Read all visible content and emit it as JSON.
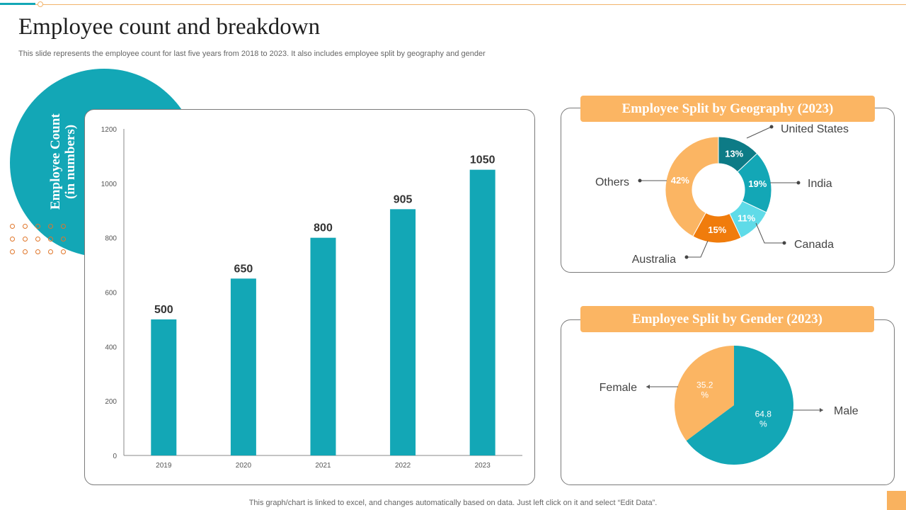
{
  "page": {
    "title": "Employee count and breakdown",
    "subtitle": "This slide represents the employee count for last five years from 2018 to 2023. It also includes employee split by geography and gender",
    "side_label_line1": "Employee Count",
    "side_label_line2": "(in numbers)",
    "footer": "This graph/chart is linked to excel,  and changes automatically based on data. Just left click on it and select “Edit Data”.",
    "colors": {
      "teal": "#13a7b6",
      "orange": "#fbb563",
      "accent_line": "#f2b36b"
    }
  },
  "chart_data": [
    {
      "type": "bar",
      "categories": [
        "2019",
        "2020",
        "2021",
        "2022",
        "2023"
      ],
      "values": [
        500,
        650,
        800,
        905,
        1050
      ],
      "data_labels": [
        "500",
        "650",
        "800",
        "905",
        "1050"
      ],
      "ylim": [
        0,
        1200
      ],
      "yticks": [
        0,
        200,
        400,
        600,
        800,
        1000,
        1200
      ],
      "color": "#13a7b6",
      "grid": false
    },
    {
      "type": "pie",
      "donut": true,
      "title": "Employee Split by Geography (2023)",
      "labels": [
        "United States",
        "India",
        "Canada",
        "Australia",
        "Others"
      ],
      "values": [
        13,
        19,
        11,
        15,
        42
      ],
      "value_labels": [
        "13%",
        "19%",
        "11%",
        "15%",
        "42%"
      ],
      "colors": [
        "#0d7b86",
        "#13a7b6",
        "#5fdbe8",
        "#f07c0c",
        "#fbb563"
      ]
    },
    {
      "type": "pie",
      "title": "Employee Split by Gender (2023)",
      "labels": [
        "Male",
        "Female"
      ],
      "values": [
        64.8,
        35.2
      ],
      "value_labels": [
        "64.8\n%",
        "35.2\n%"
      ],
      "colors": [
        "#13a7b6",
        "#fbb563"
      ]
    }
  ]
}
